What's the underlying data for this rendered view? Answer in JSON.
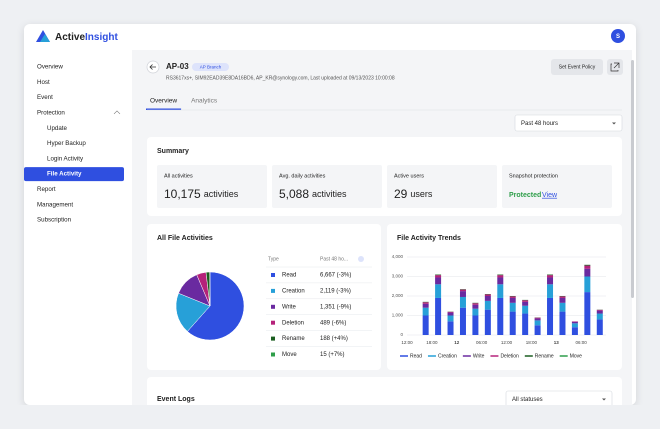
{
  "header": {
    "brand_a": "Active",
    "brand_b": "Insight",
    "avatar": "S"
  },
  "nav": {
    "top": [
      "Overview",
      "Host",
      "Event",
      "Protection"
    ],
    "sub": [
      "Update",
      "Hyper Backup",
      "Login Activity",
      "File Activity"
    ],
    "bottom": [
      "Report",
      "Management",
      "Subscription"
    ],
    "active_sub": 3
  },
  "device": {
    "name": "AP-03",
    "badge": "AP Branch",
    "meta": "RS3617xs+, SIM92EAD39E8DA16BD6, AP_KR@synology.com, Last uploaded at 09/13/2023 10:00:08",
    "button": "Set Event Policy"
  },
  "tabs": {
    "items": [
      "Overview",
      "Analytics"
    ],
    "active": 0
  },
  "range_select": "Past 48 hours",
  "summary": {
    "title": "Summary",
    "cards": [
      {
        "label": "All activities",
        "value": "10,175",
        "unit": "activities"
      },
      {
        "label": "Avg. daily activities",
        "value": "5,088",
        "unit": "activities"
      },
      {
        "label": "Active users",
        "value": "29",
        "unit": "users"
      }
    ],
    "snapshot": {
      "label": "Snapshot protection",
      "status": "Protected",
      "link": "View"
    }
  },
  "chart_data": [
    {
      "type": "pie",
      "title": "All File Activities",
      "column_headers": [
        "Type",
        "Past 48 ho..."
      ],
      "categories": [
        "Read",
        "Creation",
        "Write",
        "Deletion",
        "Rename",
        "Move"
      ],
      "values": [
        6667,
        2119,
        1351,
        489,
        188,
        15
      ],
      "value_labels": [
        "6,667 (-3%)",
        "2,119 (-3%)",
        "1,351 (-9%)",
        "489 (-6%)",
        "188 (+4%)",
        "15 (+7%)"
      ],
      "colors": [
        "#2f4fe0",
        "#27a0d8",
        "#6a2aa0",
        "#b5227a",
        "#1b5e20",
        "#2e9e4a"
      ]
    },
    {
      "type": "bar",
      "stacked": true,
      "title": "File Activity Trends",
      "categories": [
        "12:00",
        null,
        "18:00",
        null,
        "12",
        null,
        "06:00",
        null,
        "12:00",
        null,
        "18:00",
        null,
        "13",
        null,
        "06:00",
        null
      ],
      "series": [
        {
          "name": "Read",
          "color": "#2f4fe0",
          "values": [
            0,
            1000,
            1900,
            700,
            1400,
            1000,
            1300,
            1900,
            1200,
            1100,
            500,
            1900,
            1200,
            400,
            2200,
            800
          ]
        },
        {
          "name": "Creation",
          "color": "#27a0d8",
          "values": [
            0,
            400,
            700,
            300,
            550,
            350,
            450,
            700,
            450,
            400,
            250,
            700,
            450,
            200,
            800,
            300
          ]
        },
        {
          "name": "Write",
          "color": "#6a2aa0",
          "values": [
            0,
            200,
            350,
            150,
            300,
            200,
            250,
            350,
            250,
            200,
            100,
            350,
            250,
            80,
            400,
            150
          ]
        },
        {
          "name": "Deletion",
          "color": "#b5227a",
          "values": [
            0,
            80,
            120,
            40,
            80,
            80,
            80,
            120,
            80,
            80,
            40,
            120,
            80,
            20,
            160,
            40
          ]
        },
        {
          "name": "Rename",
          "color": "#1b5e20",
          "values": [
            0,
            20,
            30,
            10,
            20,
            20,
            20,
            30,
            20,
            20,
            10,
            30,
            20,
            0,
            40,
            10
          ]
        },
        {
          "name": "Move",
          "color": "#2e9e4a",
          "values": [
            0,
            0,
            0,
            0,
            0,
            0,
            0,
            0,
            0,
            0,
            0,
            0,
            0,
            0,
            0,
            0
          ]
        }
      ],
      "ylim": [
        0,
        4000
      ],
      "yticks": [
        0,
        {
          "value": 1000,
          "label": "1,000"
        },
        {
          "value": 2000,
          "label": "2,000"
        },
        {
          "value": 3000,
          "label": "3,000"
        },
        {
          "value": 4000,
          "label": "4,000"
        }
      ],
      "grid": true
    }
  ],
  "event_logs": {
    "title": "Event Logs",
    "filter": "All statuses"
  }
}
